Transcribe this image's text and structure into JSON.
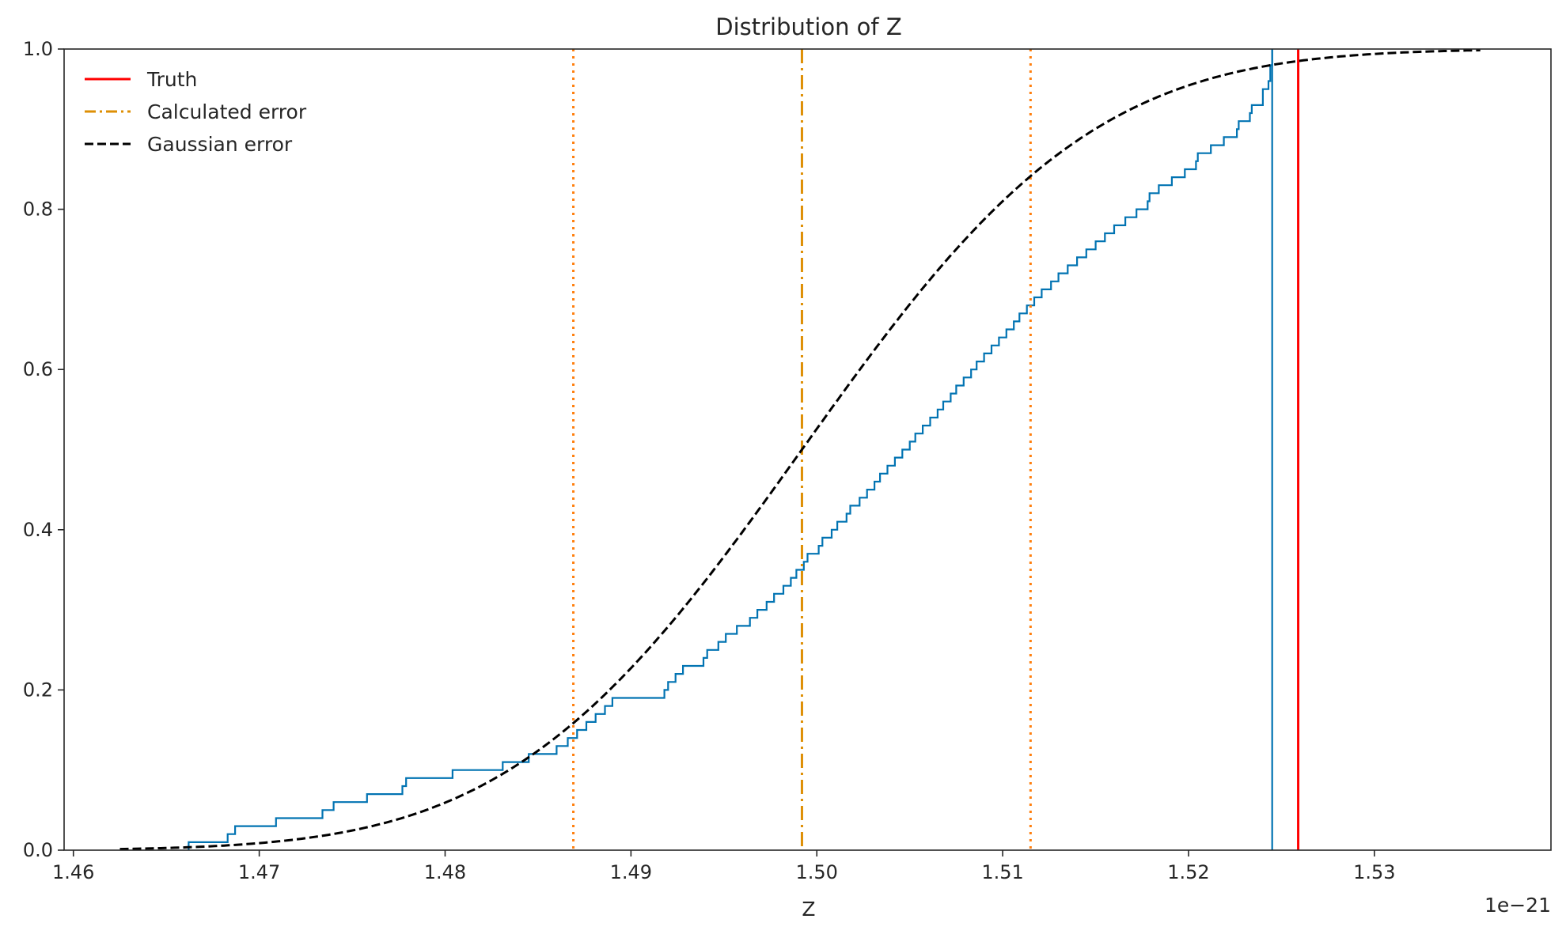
{
  "chart_data": {
    "type": "line",
    "title": "Distribution of Z",
    "xlabel": "Z",
    "ylabel": "",
    "x_offset_label": "1e−21",
    "xlim": [
      1.4595,
      1.5395
    ],
    "ylim": [
      0.0,
      1.0
    ],
    "xticks": [
      1.46,
      1.47,
      1.48,
      1.49,
      1.5,
      1.51,
      1.52,
      1.53
    ],
    "xtick_labels": [
      "1.46",
      "1.47",
      "1.48",
      "1.49",
      "1.50",
      "1.51",
      "1.52",
      "1.53"
    ],
    "yticks": [
      0.0,
      0.2,
      0.4,
      0.6,
      0.8,
      1.0
    ],
    "ytick_labels": [
      "0.0",
      "0.2",
      "0.4",
      "0.6",
      "0.8",
      "1.0"
    ],
    "grid": false,
    "legend_position": "top-left",
    "legend": [
      {
        "label": "Truth",
        "color": "#ff0000",
        "style": "solid"
      },
      {
        "label": "Calculated error",
        "color": "#de8f05",
        "style": "dashdot"
      },
      {
        "label": "Gaussian error",
        "color": "#000000",
        "style": "dashed"
      }
    ],
    "truth": {
      "x": 1.5259,
      "color": "#ff0000"
    },
    "calculated": {
      "center": 1.4992,
      "lower": 1.4869,
      "upper": 1.5115,
      "color": "#de8f05",
      "bound_color": "#ff7f0e"
    },
    "gaussian": {
      "mean": 1.4992,
      "sigma": 0.0123,
      "x_start": 1.4625,
      "x_end": 1.5357,
      "color": "#000000"
    },
    "ecdf": {
      "color": "#0173b2",
      "samples": [
        1.4662,
        1.4683,
        1.4687,
        1.4709,
        1.4734,
        1.474,
        1.4758,
        1.4777,
        1.4779,
        1.4804,
        1.4831,
        1.4845,
        1.486,
        1.4866,
        1.4871,
        1.4876,
        1.4881,
        1.4886,
        1.489,
        1.4918,
        1.492,
        1.4924,
        1.4928,
        1.4939,
        1.4941,
        1.4947,
        1.4951,
        1.4957,
        1.4964,
        1.4968,
        1.4973,
        1.4977,
        1.4982,
        1.4986,
        1.4989,
        1.4993,
        1.4995,
        1.5001,
        1.5003,
        1.5008,
        1.5011,
        1.5016,
        1.5018,
        1.5023,
        1.5027,
        1.5031,
        1.5034,
        1.5038,
        1.5042,
        1.5046,
        1.505,
        1.5053,
        1.5057,
        1.5061,
        1.5065,
        1.5068,
        1.5072,
        1.5075,
        1.5079,
        1.5083,
        1.5086,
        1.509,
        1.5094,
        1.5098,
        1.5102,
        1.5106,
        1.5109,
        1.5113,
        1.5117,
        1.5121,
        1.5126,
        1.513,
        1.5135,
        1.514,
        1.5145,
        1.515,
        1.5155,
        1.516,
        1.5166,
        1.5172,
        1.5178,
        1.5184,
        1.5191,
        1.5198,
        1.5205,
        1.5212,
        1.5219,
        1.5226,
        1.5233,
        1.524,
        1.5244,
        1.5245,
        1.5179,
        1.5204,
        1.5227,
        1.5234,
        1.524,
        1.5243,
        1.5244,
        1.5245
      ]
    }
  }
}
